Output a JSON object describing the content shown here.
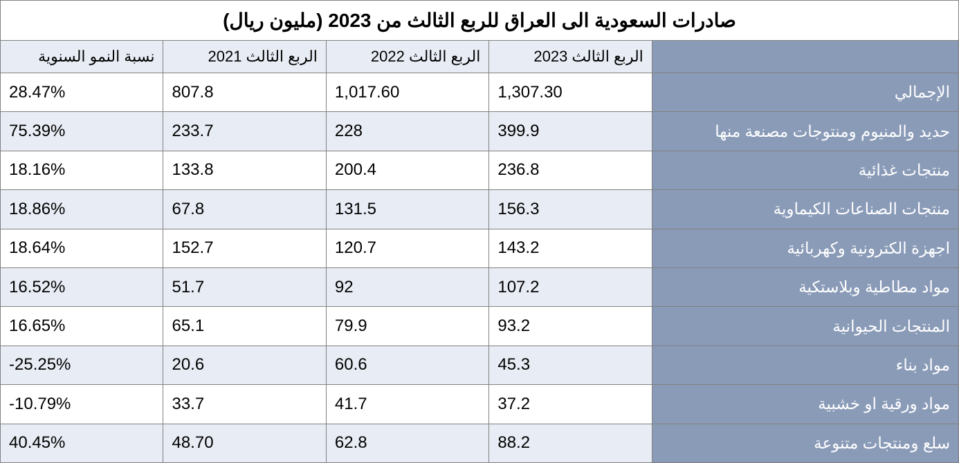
{
  "table": {
    "type": "table",
    "title": "صادرات السعودية الى العراق للربع الثالث من 2023 (مليون ريال)",
    "colors": {
      "label_bg": "#8a9bb8",
      "label_text": "#ffffff",
      "row_alt_bg": "#e8ecf4",
      "row_bg": "#ffffff",
      "border": "#808080",
      "text": "#000000"
    },
    "typography": {
      "title_fontsize": 28,
      "header_fontsize": 22,
      "cell_fontsize": 24,
      "label_fontsize": 23,
      "font_family": "Segoe UI, Tahoma, Arial"
    },
    "column_widths": [
      "32%",
      "17%",
      "17%",
      "17%",
      "17%"
    ],
    "columns": {
      "label": "",
      "q3_2023": "الربع الثالث 2023",
      "q3_2022": "الربع الثالث 2022",
      "q3_2021": "الربع الثالث 2021",
      "growth": "نسبة النمو السنوية"
    },
    "rows": [
      {
        "label": "الإجمالي",
        "q3_2023": "1,307.30",
        "q3_2022": "1,017.60",
        "q3_2021": "807.8",
        "growth": "28.47%"
      },
      {
        "label": "حديد والمنيوم ومنتوجات مصنعة منها",
        "q3_2023": "399.9",
        "q3_2022": "228",
        "q3_2021": "233.7",
        "growth": "75.39%"
      },
      {
        "label": "منتجات غذائية",
        "q3_2023": "236.8",
        "q3_2022": "200.4",
        "q3_2021": "133.8",
        "growth": "18.16%"
      },
      {
        "label": "منتجات الصناعات الكيماوية",
        "q3_2023": "156.3",
        "q3_2022": "131.5",
        "q3_2021": "67.8",
        "growth": "18.86%"
      },
      {
        "label": "اجهزة الكترونية وكهربائية",
        "q3_2023": "143.2",
        "q3_2022": "120.7",
        "q3_2021": "152.7",
        "growth": "18.64%"
      },
      {
        "label": "مواد مطاطية وبلاستكية",
        "q3_2023": "107.2",
        "q3_2022": "92",
        "q3_2021": "51.7",
        "growth": "16.52%"
      },
      {
        "label": "المنتجات الحيوانية",
        "q3_2023": "93.2",
        "q3_2022": "79.9",
        "q3_2021": "65.1",
        "growth": "16.65%"
      },
      {
        "label": "مواد بناء",
        "q3_2023": "45.3",
        "q3_2022": "60.6",
        "q3_2021": "20.6",
        "growth": "-25.25%"
      },
      {
        "label": "مواد ورقية او خشبية",
        "q3_2023": "37.2",
        "q3_2022": "41.7",
        "q3_2021": "33.7",
        "growth": "-10.79%"
      },
      {
        "label": "سلع ومنتجات متنوعة",
        "q3_2023": "88.2",
        "q3_2022": "62.8",
        "q3_2021": "48.70",
        "growth": "40.45%"
      }
    ]
  }
}
